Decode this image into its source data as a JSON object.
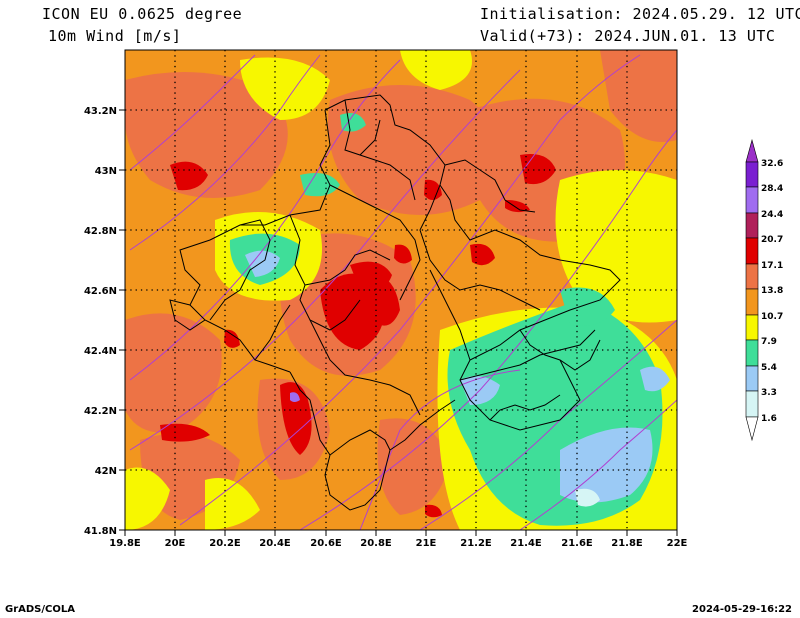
{
  "header": {
    "model": "ICON EU 0.0625 degree",
    "variable": "10m Wind [m/s]",
    "init": "Initialisation: 2024.05.29. 12 UTC",
    "valid": "Valid(+73): 2024.JUN.01. 13 UTC"
  },
  "map": {
    "lon_ticks": [
      "19.8E",
      "20E",
      "20.2E",
      "20.4E",
      "20.6E",
      "20.8E",
      "21E",
      "21.2E",
      "21.4E",
      "21.6E",
      "21.8E",
      "22E"
    ],
    "lat_ticks": [
      "43.2N",
      "43N",
      "42.8N",
      "42.6N",
      "42.4N",
      "42.2N",
      "42N",
      "41.8N"
    ]
  },
  "legend": {
    "levels": [
      "32.6",
      "28.4",
      "24.4",
      "20.7",
      "17.1",
      "13.8",
      "10.7",
      "7.9",
      "5.4",
      "3.3",
      "1.6"
    ],
    "colors": [
      "#9b30c8",
      "#7a1fd1",
      "#a06cf0",
      "#b0205a",
      "#e00000",
      "#ed7345",
      "#f2961e",
      "#f7f700",
      "#3fde99",
      "#9bcaf5",
      "#d6f5f5",
      "#ffffff"
    ]
  },
  "footer": {
    "left": "GrADS/COLA",
    "right": "2024-05-29-16:22"
  }
}
